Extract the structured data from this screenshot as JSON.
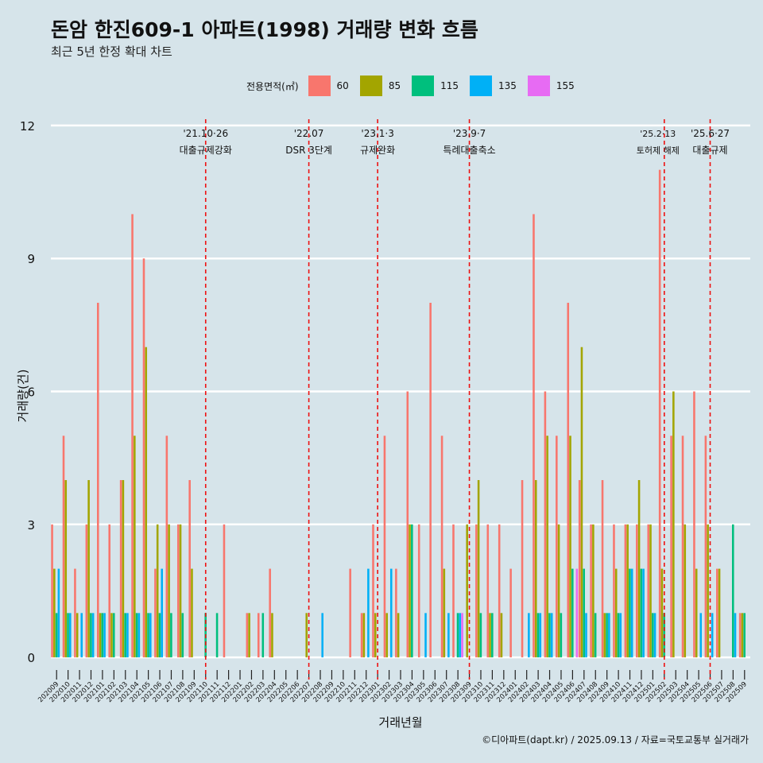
{
  "title": "돈암 한진609-1 아파트(1998) 거래량 변화 흐름",
  "subtitle": "최근 5년 한정 확대 차트",
  "caption": "©디아파트(dapt.kr) / 2025.09.13 / 자료=국토교통부 실거래가",
  "chart_data": {
    "type": "bar",
    "xlabel": "거래년월",
    "ylabel": "거래량(건)",
    "ylim": [
      -0.5,
      12.5
    ],
    "yticks": [
      0,
      3,
      6,
      9,
      12
    ],
    "legend_title": "전용면적(㎡)",
    "legend_position": "top",
    "grid": true,
    "colors": {
      "60": "#f8766d",
      "85": "#a3a500",
      "115": "#00bf7d",
      "135": "#00b0f6",
      "155": "#e76bf3"
    },
    "categories": [
      "202009",
      "202010",
      "202011",
      "202012",
      "202101",
      "202102",
      "202103",
      "202104",
      "202105",
      "202106",
      "202107",
      "202108",
      "202109",
      "202110",
      "202111",
      "202112",
      "202201",
      "202202",
      "202203",
      "202204",
      "202205",
      "202206",
      "202207",
      "202208",
      "202209",
      "202210",
      "202211",
      "202212",
      "202301",
      "202302",
      "202303",
      "202304",
      "202305",
      "202306",
      "202307",
      "202308",
      "202309",
      "202310",
      "202311",
      "202312",
      "202401",
      "202402",
      "202403",
      "202404",
      "202405",
      "202406",
      "202407",
      "202408",
      "202409",
      "202410",
      "202411",
      "202412",
      "202501",
      "202502",
      "202503",
      "202504",
      "202505",
      "202506",
      "202507",
      "202508",
      "202509"
    ],
    "x_tick_labels": [
      "202009",
      "202010",
      "202011",
      "202012",
      "202101",
      "202102",
      "202103",
      "202104",
      "202105",
      "202106",
      "202107",
      "202108",
      "202109",
      "202110",
      "202111",
      "202112",
      "202201",
      "202202",
      "202203",
      "202204",
      "202205",
      "202206",
      "202207",
      "202208",
      "202209",
      "202210",
      "202211",
      "202212",
      "202301",
      "202302",
      "202303",
      "202304",
      "202305",
      "202306",
      "202307",
      "202308",
      "202309",
      "202310",
      "202311",
      "202312",
      "202401",
      "202402",
      "202403",
      "202404",
      "202405",
      "202406",
      "202407",
      "202408",
      "202409",
      "202410",
      "202411",
      "202412",
      "202501",
      "202502",
      "202503",
      "202504",
      "202505",
      "202506",
      "202507",
      "202508",
      "202509"
    ],
    "series": [
      {
        "name": "60",
        "values": [
          3,
          5,
          2,
          3,
          8,
          3,
          4,
          10,
          9,
          2,
          5,
          3,
          4,
          0,
          0,
          3,
          0,
          1,
          1,
          2,
          0,
          0,
          0,
          0,
          0,
          0,
          2,
          1,
          3,
          5,
          2,
          6,
          3,
          8,
          5,
          3,
          0,
          3,
          3,
          3,
          2,
          4,
          10,
          6,
          5,
          8,
          4,
          3,
          4,
          3,
          3,
          3,
          3,
          11,
          5,
          5,
          6,
          5,
          2,
          0,
          1
        ]
      },
      {
        "name": "85",
        "values": [
          2,
          4,
          1,
          4,
          1,
          1,
          4,
          5,
          7,
          3,
          3,
          3,
          2,
          0,
          0,
          0,
          0,
          1,
          0,
          1,
          0,
          0,
          1,
          0,
          0,
          0,
          0,
          1,
          1,
          1,
          1,
          3,
          0,
          0,
          2,
          0,
          3,
          4,
          1,
          1,
          0,
          0,
          4,
          5,
          3,
          5,
          7,
          3,
          1,
          2,
          3,
          4,
          3,
          2,
          6,
          3,
          2,
          3,
          2,
          0,
          1
        ]
      },
      {
        "name": "115",
        "values": [
          1,
          1,
          0,
          1,
          1,
          1,
          1,
          1,
          1,
          1,
          1,
          1,
          0,
          1,
          1,
          0,
          0,
          0,
          1,
          0,
          0,
          0,
          0,
          0,
          0,
          0,
          0,
          0,
          0,
          0,
          0,
          3,
          0,
          0,
          0,
          1,
          0,
          1,
          1,
          0,
          0,
          0,
          1,
          1,
          1,
          2,
          2,
          1,
          1,
          1,
          2,
          2,
          1,
          1,
          0,
          0,
          0,
          0,
          0,
          3,
          1
        ]
      },
      {
        "name": "135",
        "values": [
          2,
          1,
          1,
          1,
          1,
          0,
          1,
          1,
          1,
          2,
          0,
          0,
          0,
          0,
          0,
          0,
          0,
          0,
          0,
          0,
          0,
          0,
          0,
          1,
          0,
          0,
          0,
          2,
          0,
          2,
          0,
          0,
          1,
          0,
          1,
          1,
          0,
          0,
          0,
          0,
          0,
          1,
          1,
          1,
          0,
          0,
          1,
          0,
          1,
          1,
          2,
          2,
          1,
          0,
          0,
          0,
          1,
          1,
          0,
          1,
          0
        ]
      },
      {
        "name": "155",
        "values": [
          0,
          0,
          0,
          0,
          0,
          0,
          0,
          0,
          0,
          0,
          0,
          0,
          0,
          0,
          0,
          0,
          0,
          0,
          0,
          0,
          0,
          0,
          0,
          0,
          0,
          0,
          0,
          0,
          0,
          0,
          0,
          0,
          0,
          0,
          0,
          1,
          0,
          0,
          0,
          0,
          0,
          0,
          0,
          0,
          0,
          2,
          0,
          0,
          0,
          0,
          0,
          0,
          0,
          0,
          0,
          0,
          0,
          0,
          0,
          0,
          0
        ]
      }
    ],
    "events": [
      {
        "date": "'21.10·26",
        "label": "대출규제강화",
        "x": "202110"
      },
      {
        "date": "'22.07",
        "label": "DSR 3단계",
        "x": "202207"
      },
      {
        "date": "'23.1·3",
        "label": "규제완화",
        "x": "202301"
      },
      {
        "date": "'23.9·7",
        "label": "특례대출축소",
        "x": "202309"
      },
      {
        "date": "'25.2·13",
        "label": "토허제 해제",
        "x": "202502"
      },
      {
        "date": "'25.6·27",
        "label": "대출규제",
        "x": "202506"
      }
    ]
  }
}
